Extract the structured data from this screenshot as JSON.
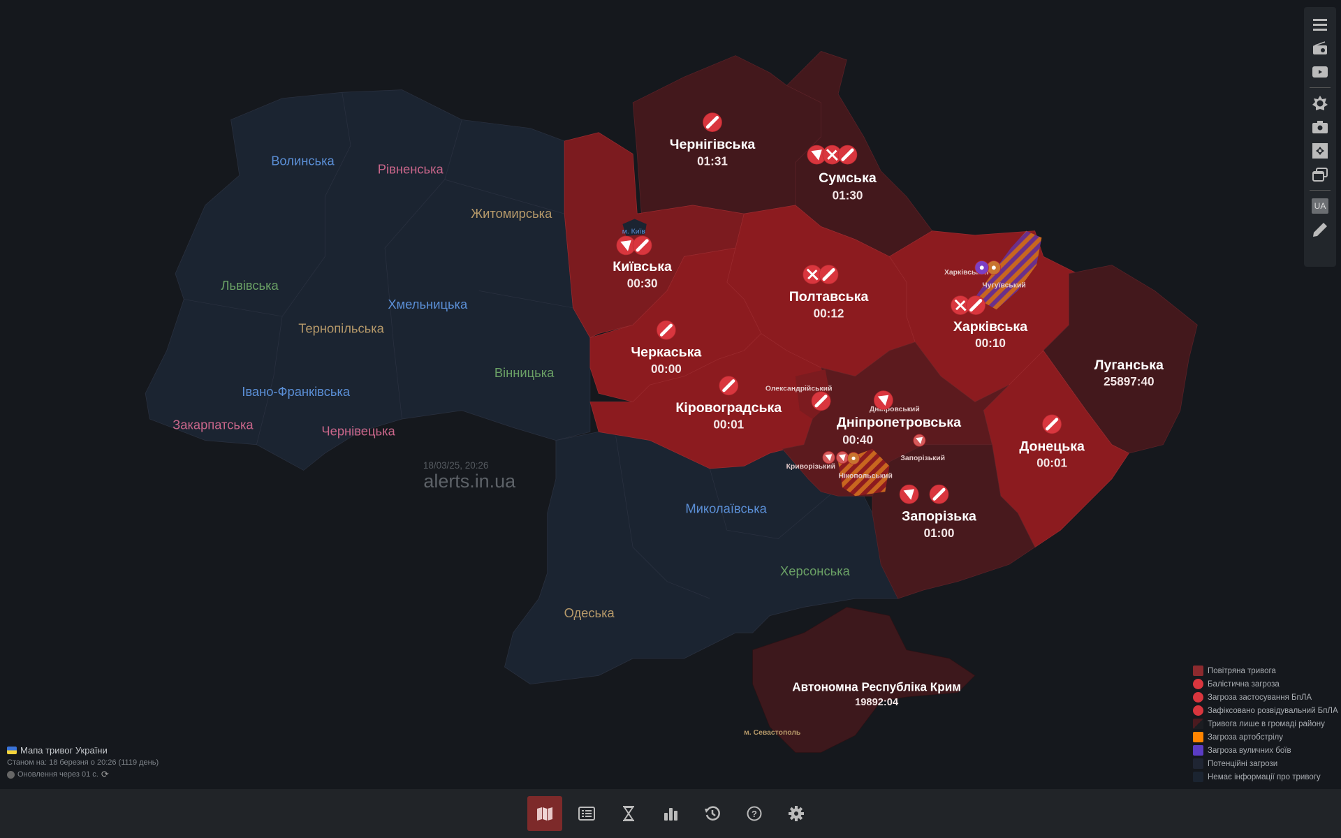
{
  "colors": {
    "background": "#15181d",
    "no_info": "#1b2431",
    "air_alert": "#8c1b1f",
    "alert_dim": "#4a1a1f",
    "alert_dark": "#5c1a1e",
    "kyiv_alert": "#7c1b1f",
    "icon_red": "#d9363e",
    "artillery": "#e07a1f",
    "street_fight": "#6a3fbf"
  },
  "watermark": {
    "datetime": "18/03/25, 20:26",
    "site": "alerts.in.ua"
  },
  "regions": {
    "volyn": "Волинська",
    "rivne": "Рівненська",
    "zhytomyr": "Житомирська",
    "lviv": "Львівська",
    "khmelnytskyi": "Хмельницька",
    "ternopil": "Тернопільська",
    "ivano_frankivsk": "Івано-Франківська",
    "vinnytsia": "Вінницька",
    "zakarpattia": "Закарпатська",
    "chernivtsi": "Чернівецька",
    "mykolaiv": "Миколаївська",
    "kherson": "Херсонська",
    "odesa": "Одеська",
    "kyiv_city": "м. Київ",
    "sevastopol": "м. Севастополь"
  },
  "alerts": [
    {
      "id": "chernihiv",
      "name": "Чернігівська",
      "timer": "01:31",
      "icons": [
        "ballistic"
      ]
    },
    {
      "id": "sumy",
      "name": "Сумська",
      "timer": "01:30",
      "icons": [
        "drone",
        "recon-drone",
        "ballistic"
      ]
    },
    {
      "id": "kyiv",
      "name": "Київська",
      "timer": "00:30",
      "icons": [
        "drone",
        "ballistic"
      ]
    },
    {
      "id": "poltava",
      "name": "Полтавська",
      "timer": "00:12",
      "icons": [
        "recon-drone",
        "ballistic"
      ]
    },
    {
      "id": "kharkiv",
      "name": "Харківська",
      "timer": "00:10",
      "icons": [
        "recon-drone",
        "ballistic"
      ]
    },
    {
      "id": "cherkasy",
      "name": "Черкаська",
      "timer": "00:00",
      "icons": [
        "ballistic"
      ]
    },
    {
      "id": "kirovohrad",
      "name": "Кіровоградська",
      "timer": "00:01",
      "icons": [
        "ballistic"
      ]
    },
    {
      "id": "luhansk",
      "name": "Луганська",
      "timer": "25897:40",
      "icons": []
    },
    {
      "id": "dnipro",
      "name": "Дніпропетровська",
      "timer": "00:40",
      "icons": []
    },
    {
      "id": "donetsk",
      "name": "Донецька",
      "timer": "00:01",
      "icons": [
        "ballistic"
      ]
    },
    {
      "id": "zaporizhzhia",
      "name": "Запорізька",
      "timer": "01:00",
      "icons": [
        "drone",
        "ballistic"
      ]
    },
    {
      "id": "crimea",
      "name": "Автономна Республіка Крим",
      "timer": "19892:04",
      "icons": []
    }
  ],
  "districts": {
    "kharkivskyi": "Харківський",
    "chuhuivskyi": "Чугуївський",
    "oleksandriiskyi": "Олександрійський",
    "dniprovskyi": "Дніпровський",
    "zaporizkyi": "Запорізький",
    "kryvorizkyi": "Криворізький",
    "nikopolskyi": "Нікопольський"
  },
  "legend": [
    {
      "label": "Повітряна тривога",
      "color": "#8c2a2e",
      "kind": "square"
    },
    {
      "label": "Балістична загроза",
      "color": "#d9363e",
      "kind": "ballistic"
    },
    {
      "label": "Загроза застосування БпЛА",
      "color": "#d9363e",
      "kind": "drone"
    },
    {
      "label": "Зафіксовано розвідувальний БпЛА",
      "color": "#d9363e",
      "kind": "recon-drone"
    },
    {
      "label": "Тривога лише в громаді району",
      "color": "#4a1a1f",
      "kind": "split"
    },
    {
      "label": "Загроза артобстрілу",
      "color": "#ff8400",
      "kind": "square"
    },
    {
      "label": "Загроза вуличних боїв",
      "color": "#5b3cc4",
      "kind": "square"
    },
    {
      "label": "Потенційні загрози",
      "color": "#1f2533",
      "kind": "square"
    },
    {
      "label": "Немає інформації про тривогу",
      "color": "#1b2431",
      "kind": "square"
    }
  ],
  "info": {
    "title": "Мапа тривог України",
    "status": "Станом на: 18 березня о 20:26 (1119 день)",
    "refresh": "Оновлення через 01 с."
  },
  "toolbar": [
    "menu-icon",
    "radio-icon",
    "youtube-icon",
    "brightness-icon",
    "camera-icon",
    "fullscreen-icon",
    "windows-icon",
    "language-ua",
    "pencil-icon"
  ],
  "toolbar_lang": "UA",
  "bottom_nav": [
    {
      "id": "map",
      "icon": "map-icon",
      "active": true
    },
    {
      "id": "list",
      "icon": "list-icon",
      "active": false
    },
    {
      "id": "timer",
      "icon": "hourglass-icon",
      "active": false
    },
    {
      "id": "stats",
      "icon": "bar-chart-icon",
      "active": false
    },
    {
      "id": "history",
      "icon": "history-icon",
      "active": false
    },
    {
      "id": "help",
      "icon": "help-icon",
      "active": false
    },
    {
      "id": "settings",
      "icon": "gear-icon",
      "active": false
    }
  ]
}
